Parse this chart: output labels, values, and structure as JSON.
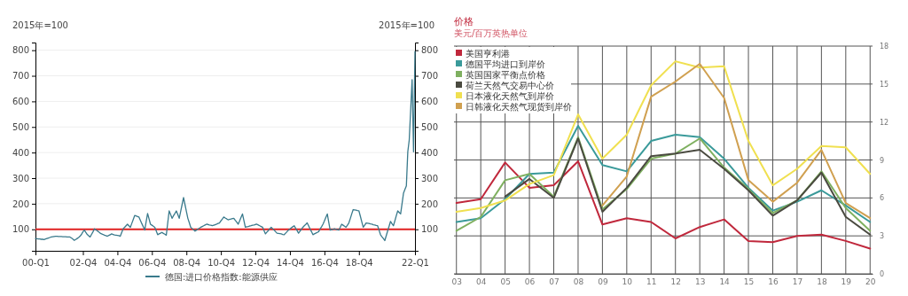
{
  "chart_data": [
    {
      "type": "line",
      "ylabel": "2015年=100",
      "y2label": "2015年=100",
      "categories": [
        "00-Q1",
        null,
        null,
        null,
        null,
        null,
        null,
        null,
        null,
        null,
        null,
        null,
        null,
        null,
        null,
        null,
        null,
        null,
        null,
        null,
        null,
        null,
        null,
        null,
        null,
        null,
        null,
        null,
        null,
        null,
        null,
        null,
        null,
        "02-Q4",
        null,
        null,
        null,
        null,
        null,
        null,
        null,
        null,
        null,
        null,
        null,
        null,
        null,
        null,
        null,
        null,
        null,
        null,
        null,
        null,
        null,
        null,
        null,
        "04-Q4",
        null,
        null,
        null,
        null,
        null,
        null,
        null,
        null,
        null,
        null,
        null,
        null,
        null,
        null,
        null,
        null,
        null,
        null,
        null,
        null,
        null,
        null,
        null,
        "06-Q4",
        null,
        null,
        null,
        null,
        null,
        null,
        null,
        null,
        null,
        null,
        null,
        null,
        null,
        null,
        null,
        null,
        null,
        null,
        null,
        null,
        null,
        null,
        null,
        "08-Q4",
        null,
        null,
        null,
        null,
        null,
        null,
        null,
        null,
        null,
        null,
        null,
        null,
        null,
        null,
        null,
        null,
        null,
        null,
        null,
        null,
        null,
        null,
        null,
        "10-Q4",
        null,
        null,
        null,
        null,
        null,
        null,
        null,
        null,
        null,
        null,
        null,
        null,
        null,
        null,
        null,
        null,
        null,
        null,
        null,
        null,
        null,
        null,
        null,
        "12-Q4",
        null,
        null,
        null,
        null,
        null,
        null,
        null,
        null,
        null,
        null,
        null,
        null,
        null,
        null,
        null,
        null,
        null,
        null,
        null,
        null,
        null,
        null,
        null,
        "14-Q4",
        null,
        null,
        null,
        null,
        null,
        null,
        null,
        null,
        null,
        null,
        null,
        null,
        null,
        null,
        null,
        null,
        null,
        null,
        null,
        null,
        null,
        null,
        null,
        "16-Q4",
        null,
        null,
        null,
        null,
        null,
        null,
        null,
        null,
        null,
        null,
        null,
        null,
        null,
        null,
        null,
        null,
        null,
        null,
        null,
        null,
        null,
        null,
        null,
        "18-Q4",
        null,
        null,
        null,
        null,
        null,
        null,
        null,
        null,
        null,
        null,
        null,
        null,
        null,
        null,
        null,
        null,
        null,
        null,
        null,
        null,
        null,
        null,
        null,
        null,
        null,
        null,
        null,
        null,
        null,
        null,
        null,
        null,
        null,
        null,
        null,
        null,
        null,
        null,
        "22-Q1"
      ],
      "series": [
        {
          "name": "德国:进口价格指数:能源供应",
          "color": "#3a7a8c",
          "values": [
            64,
            63,
            62,
            62,
            61,
            61,
            60,
            62,
            64,
            66,
            68,
            70,
            71,
            72,
            73,
            73,
            72,
            72,
            72,
            71,
            71,
            71,
            70,
            70,
            70,
            66,
            62,
            57,
            60,
            64,
            68,
            73,
            80,
            90,
            97,
            88,
            80,
            75,
            70,
            80,
            90,
            102,
            98,
            94,
            90,
            85,
            82,
            80,
            77,
            75,
            73,
            76,
            79,
            82,
            80,
            78,
            77,
            76,
            75,
            73,
            88,
            102,
            108,
            114,
            120,
            114,
            108,
            123,
            138,
            154,
            152,
            150,
            148,
            135,
            122,
            110,
            97,
            130,
            162,
            141,
            120,
            116,
            112,
            108,
            94,
            79,
            82,
            85,
            88,
            84,
            81,
            77,
            125,
            172,
            158,
            143,
            153,
            162,
            172,
            158,
            143,
            170,
            197,
            224,
            197,
            170,
            143,
            126,
            108,
            103,
            98,
            93,
            97,
            101,
            104,
            108,
            111,
            114,
            117,
            120,
            119,
            117,
            116,
            114,
            116,
            118,
            120,
            123,
            125,
            133,
            140,
            148,
            144,
            141,
            137,
            139,
            140,
            142,
            143,
            135,
            128,
            120,
            133,
            147,
            160,
            134,
            108,
            110,
            111,
            113,
            114,
            116,
            117,
            119,
            120,
            117,
            114,
            111,
            108,
            95,
            82,
            89,
            95,
            102,
            108,
            102,
            97,
            91,
            85,
            84,
            83,
            82,
            80,
            79,
            85,
            91,
            97,
            101,
            106,
            110,
            114,
            104,
            95,
            85,
            93,
            100,
            108,
            114,
            119,
            125,
            114,
            102,
            91,
            79,
            82,
            85,
            88,
            91,
            101,
            110,
            120,
            133,
            147,
            160,
            128,
            97,
            99,
            100,
            102,
            100,
            99,
            97,
            108,
            120,
            116,
            112,
            108,
            116,
            125,
            142,
            160,
            177,
            176,
            175,
            173,
            172,
            151,
            129,
            108,
            116,
            125,
            124,
            123,
            121,
            120,
            118,
            117,
            115,
            114,
            97,
            79,
            71,
            64,
            56,
            75,
            94,
            112,
            131,
            122,
            114,
            133,
            153,
            172,
            166,
            160,
            200,
            241,
            256,
            270,
            403,
            449,
            567,
            685,
            403,
            795
          ]
        }
      ],
      "ylim": [
        16,
        830
      ],
      "yticks": [
        100,
        200,
        300,
        400,
        500,
        600,
        700,
        800
      ],
      "y2lim": [
        16,
        830
      ],
      "y2ticks": [
        100,
        200,
        300,
        400,
        500,
        600,
        700,
        800
      ],
      "ref_lines": [
        {
          "axis": "y",
          "value": 100,
          "color": "#e02020"
        }
      ],
      "grid": "y",
      "legend": "bottom"
    },
    {
      "type": "line",
      "title": "价格",
      "subtitle": "美元/百万英热单位",
      "categories": [
        "03",
        "04",
        "05",
        "06",
        "07",
        "08",
        "09",
        "10",
        "11",
        "12",
        "13",
        "14",
        "15",
        "16",
        "17",
        "18",
        "19",
        "20"
      ],
      "series": [
        {
          "name": "美国亨利港",
          "color": "#c0283c",
          "axis": "y2",
          "values": [
            5.6,
            5.9,
            8.8,
            6.8,
            7.0,
            8.9,
            3.9,
            4.4,
            4.1,
            2.8,
            3.7,
            4.3,
            2.6,
            2.5,
            3.0,
            3.1,
            2.6,
            2.0
          ]
        },
        {
          "name": "德国平均进口到岸价",
          "color": "#3a9a9a",
          "axis": "y2",
          "values": [
            4.1,
            4.4,
            5.9,
            7.9,
            8.0,
            11.7,
            8.6,
            8.1,
            10.5,
            11.0,
            10.8,
            9.1,
            6.8,
            5.0,
            5.7,
            6.6,
            5.4,
            4.1
          ]
        },
        {
          "name": "英国国家平衡点价格",
          "color": "#7fb060",
          "axis": "y2",
          "values": [
            3.4,
            4.5,
            7.4,
            7.9,
            6.1,
            10.8,
            5.1,
            6.7,
            9.1,
            9.5,
            10.7,
            8.4,
            6.7,
            4.8,
            5.8,
            8.1,
            5.2,
            3.4
          ]
        },
        {
          "name": "荷兰天然气交易中心价",
          "color": "#4a4a40",
          "axis": "y2",
          "values": [
            null,
            null,
            6.1,
            7.5,
            6.0,
            10.7,
            4.9,
            6.8,
            9.3,
            9.5,
            9.8,
            8.3,
            6.6,
            4.6,
            5.8,
            8.0,
            4.5,
            3.1
          ]
        },
        {
          "name": "日本液化天然气到岸价",
          "color": "#f0e050",
          "axis": "y2",
          "values": [
            4.9,
            5.2,
            5.8,
            7.1,
            7.8,
            12.6,
            9.1,
            11.0,
            14.9,
            16.8,
            16.3,
            16.4,
            10.5,
            7.0,
            8.3,
            10.1,
            10.0,
            7.9
          ]
        },
        {
          "name": "日韩液化天然气现货到岸价",
          "color": "#d0a050",
          "axis": "y2",
          "values": [
            null,
            null,
            null,
            null,
            null,
            null,
            5.4,
            7.7,
            14.0,
            15.2,
            16.6,
            13.9,
            7.4,
            5.7,
            7.2,
            9.8,
            5.6,
            4.4
          ]
        }
      ],
      "y2lim": [
        0,
        18
      ],
      "y2ticks": [
        0,
        3,
        6,
        9,
        12,
        15,
        18
      ],
      "grid": true,
      "legend": "top left"
    }
  ]
}
